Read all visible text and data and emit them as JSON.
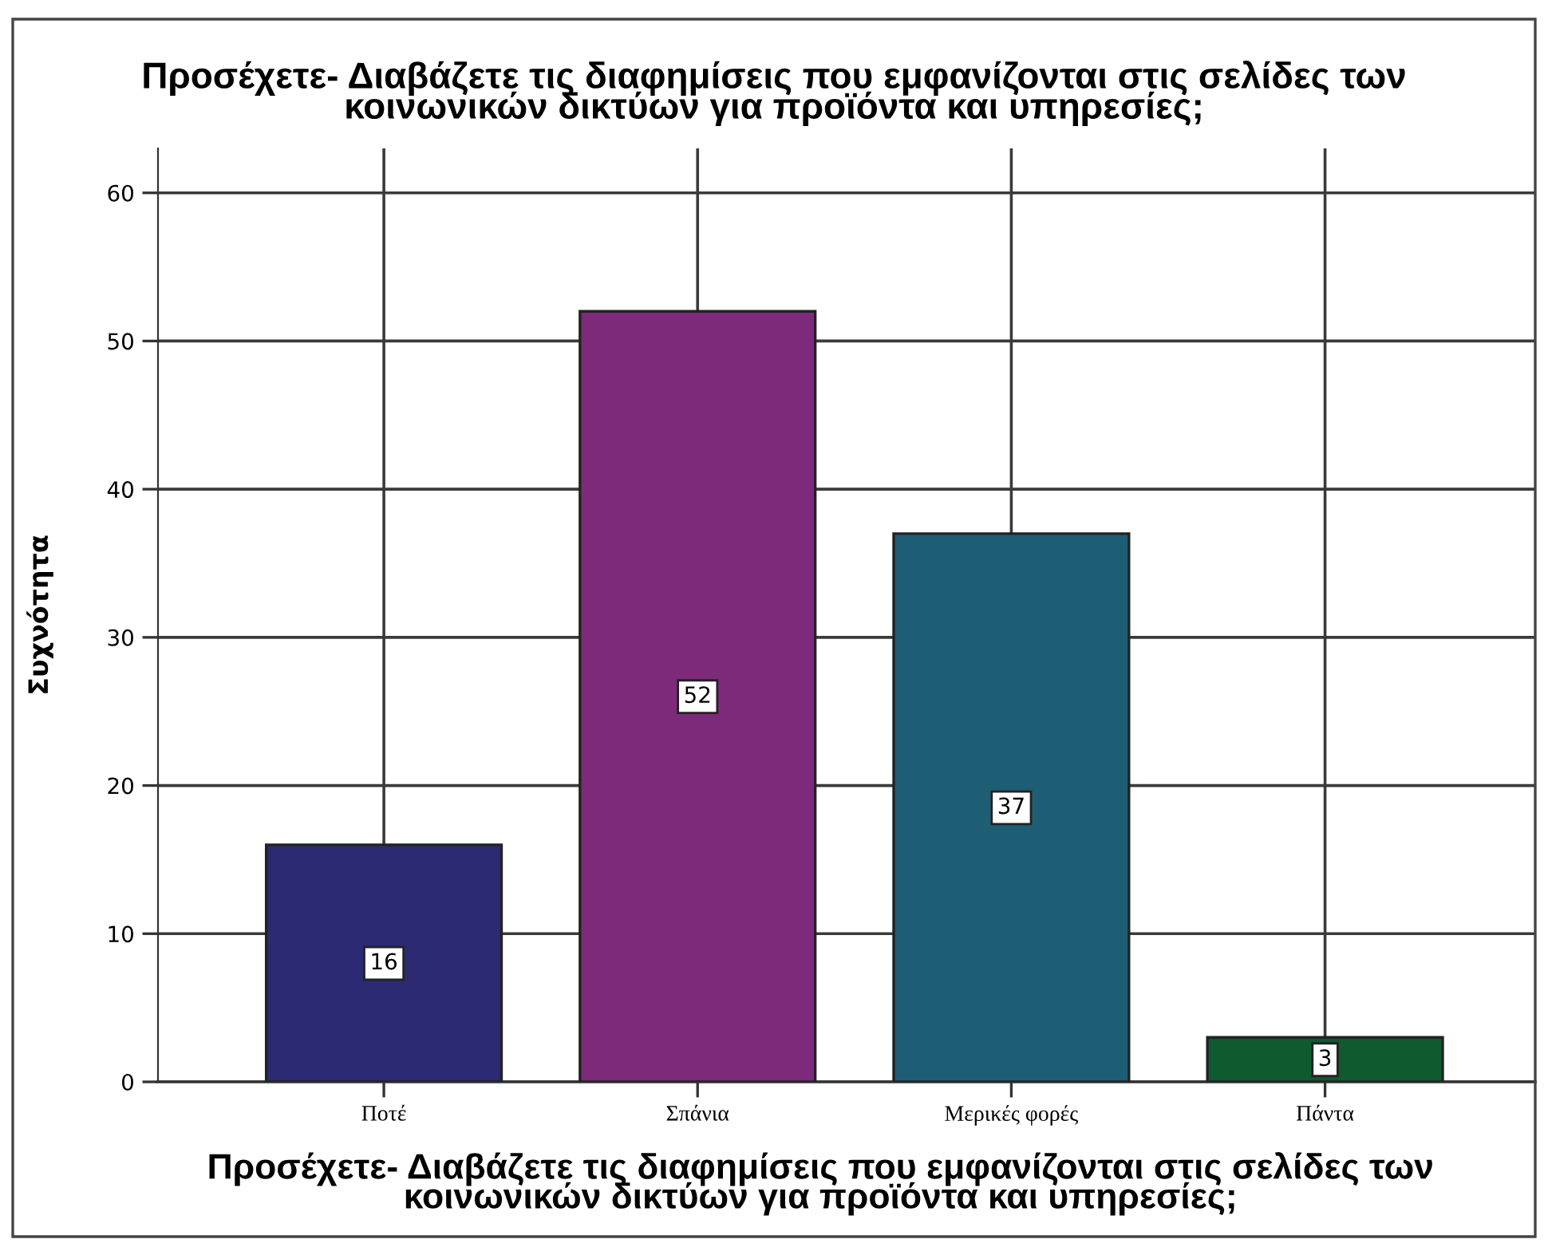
{
  "chart_data": {
    "type": "bar",
    "title": "Προσέχετε- Διαβάζετε τις διαφημίσεις που εμφανίζονται στις σελίδες των\nκοινωνικών δικτύων για προϊόντα και υπηρεσίες;",
    "xlabel": "Προσέχετε- Διαβάζετε τις διαφημίσεις που εμφανίζονται στις σελίδες των\nκοινωνικών δικτύων για προϊόντα και υπηρεσίες;",
    "ylabel": "Συχνότητα",
    "categories": [
      "Ποτέ",
      "Σπάνια",
      "Μερικές φορές",
      "Πάντα"
    ],
    "values": [
      16,
      52,
      37,
      3
    ],
    "colors": [
      "#2b2a72",
      "#7d2a7b",
      "#1e5e75",
      "#0f5a2e"
    ],
    "ylim": [
      0,
      63
    ],
    "yticks": [
      0,
      10,
      20,
      30,
      40,
      50,
      60
    ],
    "grid": true,
    "data_labels": true
  }
}
